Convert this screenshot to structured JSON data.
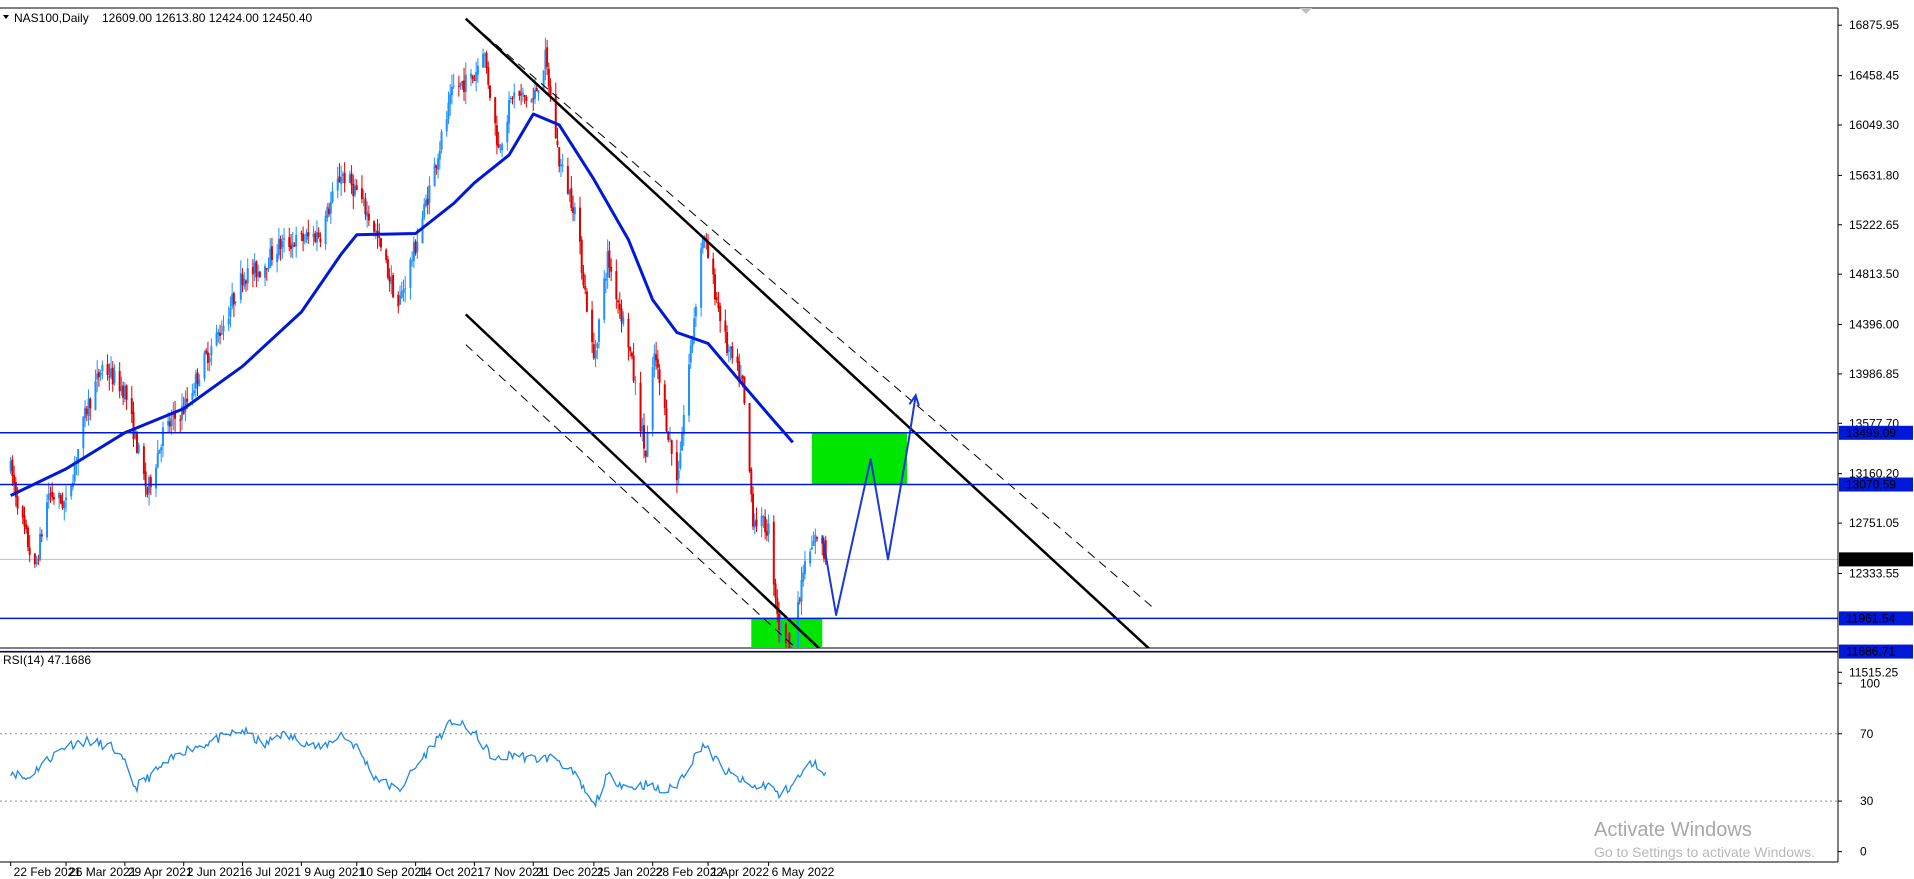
{
  "header": {
    "symbol": "NAS100,Daily",
    "ohlc": "12609.00 12613.80 12424.00 12450.40"
  },
  "watermark": {
    "title": "Activate Windows",
    "subtitle": "Go to Settings to activate Windows."
  },
  "colors": {
    "background": "#ffffff",
    "bull": "#1e90ff",
    "bear": "#e00000",
    "ma": "#0018d8",
    "level": "#0018d8",
    "zone": "#00e600",
    "channel": "#000000",
    "rsi": "#1e88e5",
    "projection": "#1838d8"
  },
  "chart_data": [
    {
      "type": "candlestick",
      "symbol": "NAS100",
      "timeframe": "Daily",
      "last_ohlc": {
        "open": 12609.0,
        "high": 12613.8,
        "low": 12424.0,
        "close": 12450.4
      },
      "ylim": [
        11350,
        16980
      ],
      "y_ticks": [
        "16875.95",
        "16458.45",
        "16049.30",
        "15631.80",
        "15222.65",
        "14813.50",
        "14396.00",
        "13986.85",
        "13577.70",
        "13160.20",
        "12751.05",
        "12333.55",
        "11515.25"
      ],
      "x_labels": [
        "22 Feb 2021",
        "26 Mar 2021",
        "29 Apr 2021",
        "2 Jun 2021",
        "6 Jul 2021",
        "9 Aug 2021",
        "10 Sep 2021",
        "14 Oct 2021",
        "17 Nov 2021",
        "21 Dec 2021",
        "25 Jan 2022",
        "28 Feb 2022",
        "1 Apr 2022",
        "6 May 2022"
      ],
      "price_path": [
        [
          "22 Feb 2021",
          13200
        ],
        [
          "1 Mar 2021",
          12750
        ],
        [
          "8 Mar 2021",
          12350
        ],
        [
          "16 Mar 2021",
          13000
        ],
        [
          "26 Mar 2021",
          12900
        ],
        [
          "7 Apr 2021",
          13700
        ],
        [
          "16 Apr 2021",
          14050
        ],
        [
          "29 Apr 2021",
          13850
        ],
        [
          "12 May 2021",
          13000
        ],
        [
          "21 May 2021",
          13500
        ],
        [
          "2 Jun 2021",
          13700
        ],
        [
          "14 Jun 2021",
          14100
        ],
        [
          "25 Jun 2021",
          14400
        ],
        [
          "6 Jul 2021",
          14800
        ],
        [
          "16 Jul 2021",
          14850
        ],
        [
          "27 Jul 2021",
          15050
        ],
        [
          "9 Aug 2021",
          15100
        ],
        [
          "20 Aug 2021",
          15150
        ],
        [
          "1 Sep 2021",
          15650
        ],
        [
          "10 Sep 2021",
          15500
        ],
        [
          "20 Sep 2021",
          15200
        ],
        [
          "4 Oct 2021",
          14550
        ],
        [
          "14 Oct 2021",
          15050
        ],
        [
          "25 Oct 2021",
          15700
        ],
        [
          "5 Nov 2021",
          16350
        ],
        [
          "17 Nov 2021",
          16450
        ],
        [
          "22 Nov 2021",
          16700
        ],
        [
          "1 Dec 2021",
          15850
        ],
        [
          "9 Dec 2021",
          16300
        ],
        [
          "21 Dec 2021",
          16250
        ],
        [
          "28 Dec 2021",
          16600
        ],
        [
          "5 Jan 2022",
          15750
        ],
        [
          "14 Jan 2022",
          15350
        ],
        [
          "25 Jan 2022",
          14100
        ],
        [
          "2 Feb 2022",
          14950
        ],
        [
          "14 Feb 2022",
          14250
        ],
        [
          "24 Feb 2022",
          13300
        ],
        [
          "1 Mar 2022",
          14150
        ],
        [
          "14 Mar 2022",
          13100
        ],
        [
          "29 Mar 2022",
          15150
        ],
        [
          "1 Apr 2022",
          14950
        ],
        [
          "12 Apr 2022",
          14200
        ],
        [
          "21 Apr 2022",
          13900
        ],
        [
          "27 Apr 2022",
          12800
        ],
        [
          "6 May 2022",
          12700
        ],
        [
          "12 May 2022",
          11900
        ],
        [
          "20 May 2022",
          11700
        ],
        [
          "26 May 2022",
          12350
        ],
        [
          "3 Jun 2022",
          12650
        ],
        [
          "8 Jun 2022",
          12450
        ]
      ],
      "moving_average": [
        [
          "22 Feb 2021",
          12980
        ],
        [
          "26 Mar 2021",
          13200
        ],
        [
          "29 Apr 2021",
          13500
        ],
        [
          "2 Jun 2021",
          13700
        ],
        [
          "6 Jul 2021",
          14050
        ],
        [
          "9 Aug 2021",
          14500
        ],
        [
          "1 Sep 2021",
          14980
        ],
        [
          "10 Sep 2021",
          15140
        ],
        [
          "14 Oct 2021",
          15150
        ],
        [
          "5 Nov 2021",
          15400
        ],
        [
          "17 Nov 2021",
          15570
        ],
        [
          "7 Dec 2021",
          15800
        ],
        [
          "21 Dec 2021",
          16140
        ],
        [
          "5 Jan 2022",
          16050
        ],
        [
          "25 Jan 2022",
          15600
        ],
        [
          "14 Feb 2022",
          15100
        ],
        [
          "28 Feb 2022",
          14600
        ],
        [
          "14 Mar 2022",
          14330
        ],
        [
          "1 Apr 2022",
          14240
        ],
        [
          "21 Apr 2022",
          13900
        ],
        [
          "6 May 2022",
          13650
        ],
        [
          "20 May 2022",
          13420
        ]
      ],
      "horizontal_levels": [
        {
          "value": 13499.09,
          "label": "13499.09"
        },
        {
          "value": 13070.59,
          "label": "13070.59"
        },
        {
          "value": 11961.54,
          "label": "11961.54"
        },
        {
          "value": 11686.71,
          "label": "11686.71"
        }
      ],
      "current_price": {
        "value": 12450.4,
        "label": "12450.40"
      },
      "zones": [
        {
          "name": "resistance zone",
          "from_date": "31 May 2022",
          "to_date": "25 Jul 2022",
          "y_low": 13070.59,
          "y_high": 13499.09
        },
        {
          "name": "support zone",
          "from_date": "26 Apr 2022",
          "to_date": "6 Jun 2022",
          "y_low": 11686.71,
          "y_high": 11961.54
        }
      ],
      "channel_lines": [
        {
          "style": "solid",
          "from": [
            "12 Nov 2021",
            16930
          ],
          "to": [
            "15 Dec 2022",
            11670
          ]
        },
        {
          "style": "dashed",
          "from": [
            "16 Nov 2021",
            16880
          ],
          "to": [
            "15 Dec 2022",
            12040
          ]
        },
        {
          "style": "solid",
          "from": [
            "12 Nov 2021",
            14480
          ],
          "to": [
            "1 Jul 2022",
            11350
          ]
        },
        {
          "style": "dashed",
          "from": [
            "12 Nov 2021",
            14230
          ],
          "to": [
            "20 Jun 2022",
            11330
          ]
        }
      ],
      "projection": [
        [
          "6 Jun 2022",
          12650
        ],
        [
          "14 Jun 2022",
          11990
        ],
        [
          "4 Jul 2022",
          13280
        ],
        [
          "14 Jul 2022",
          12450
        ],
        [
          "26 Jul 2022",
          13440
        ],
        [
          "30 Jul 2022",
          13810
        ]
      ]
    },
    {
      "type": "line",
      "title": "RSI(14) 47.1686",
      "series": [
        {
          "name": "RSI(14)",
          "values_path": [
            [
              "22 Feb 2021",
              48
            ],
            [
              "3 Mar 2021",
              43
            ],
            [
              "12 Mar 2021",
              52
            ],
            [
              "26 Mar 2021",
              63
            ],
            [
              "7 Apr 2021",
              66
            ],
            [
              "22 Apr 2021",
              62
            ],
            [
              "29 Apr 2021",
              52
            ],
            [
              "5 May 2021",
              38
            ],
            [
              "20 May 2021",
              50
            ],
            [
              "2 Jun 2021",
              60
            ],
            [
              "14 Jun 2021",
              64
            ],
            [
              "30 Jun 2021",
              70
            ],
            [
              "6 Jul 2021",
              72
            ],
            [
              "19 Jul 2021",
              63
            ],
            [
              "27 Jul 2021",
              70
            ],
            [
              "9 Aug 2021",
              66
            ],
            [
              "20 Aug 2021",
              61
            ],
            [
              "1 Sep 2021",
              70
            ],
            [
              "10 Sep 2021",
              62
            ],
            [
              "20 Sep 2021",
              45
            ],
            [
              "4 Oct 2021",
              36
            ],
            [
              "14 Oct 2021",
              50
            ],
            [
              "27 Oct 2021",
              68
            ],
            [
              "5 Nov 2021",
              78
            ],
            [
              "17 Nov 2021",
              70
            ],
            [
              "29 Nov 2021",
              54
            ],
            [
              "10 Dec 2021",
              58
            ],
            [
              "21 Dec 2021",
              55
            ],
            [
              "3 Jan 2022",
              56
            ],
            [
              "14 Jan 2022",
              45
            ],
            [
              "25 Jan 2022",
              27
            ],
            [
              "2 Feb 2022",
              45
            ],
            [
              "14 Feb 2022",
              38
            ],
            [
              "24 Feb 2022",
              40
            ],
            [
              "7 Mar 2022",
              35
            ],
            [
              "14 Mar 2022",
              40
            ],
            [
              "29 Mar 2022",
              64
            ],
            [
              "1 Apr 2022",
              60
            ],
            [
              "12 Apr 2022",
              47
            ],
            [
              "27 Apr 2022",
              38
            ],
            [
              "6 May 2022",
              40
            ],
            [
              "12 May 2022",
              33
            ],
            [
              "20 May 2022",
              40
            ],
            [
              "31 May 2022",
              53
            ],
            [
              "8 Jun 2022",
              47
            ]
          ]
        }
      ],
      "ylim": [
        0,
        100
      ],
      "y_ticks": [
        "100",
        "70",
        "30",
        "0"
      ],
      "levels": [
        70,
        30
      ]
    }
  ]
}
